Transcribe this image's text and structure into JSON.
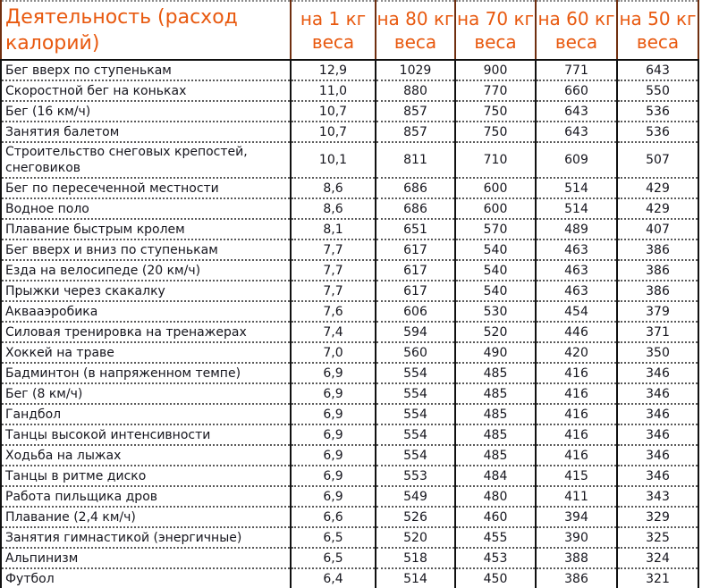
{
  "colors": {
    "header_text": "#e8590f",
    "header_grid": "#6f2f10",
    "body_text": "#15151d",
    "grid": "#111111",
    "row_divider": "#5a5a5a"
  },
  "chart_data": {
    "type": "table",
    "title": "Деятельность (расход калорий)",
    "columns": [
      "Деятельность (расход калорий)",
      "на 1 кг веса",
      "на 80 кг веса",
      "на 70 кг веса",
      "на 60 кг веса",
      "на 50 кг веса"
    ],
    "rows": [
      [
        "Бег вверх по ступенькам",
        "12,9",
        "1029",
        "900",
        "771",
        "643"
      ],
      [
        "Скоростной бег на коньках",
        "11,0",
        "880",
        "770",
        "660",
        "550"
      ],
      [
        "Бег (16 км/ч)",
        "10,7",
        "857",
        "750",
        "643",
        "536"
      ],
      [
        "Занятия балетом",
        "10,7",
        "857",
        "750",
        "643",
        "536"
      ],
      [
        "Строительство снеговых крепостей, снеговиков",
        "10,1",
        "811",
        "710",
        "609",
        "507"
      ],
      [
        "Бег по пересеченной местности",
        "8,6",
        "686",
        "600",
        "514",
        "429"
      ],
      [
        "Водное поло",
        "8,6",
        "686",
        "600",
        "514",
        "429"
      ],
      [
        "Плавание быстрым кролем",
        "8,1",
        "651",
        "570",
        "489",
        "407"
      ],
      [
        "Бег вверх и вниз по ступенькам",
        "7,7",
        "617",
        "540",
        "463",
        "386"
      ],
      [
        "Езда на велосипеде (20 км/ч)",
        "7,7",
        "617",
        "540",
        "463",
        "386"
      ],
      [
        "Прыжки через скакалку",
        "7,7",
        "617",
        "540",
        "463",
        "386"
      ],
      [
        "Аквааэробика",
        "7,6",
        "606",
        "530",
        "454",
        "379"
      ],
      [
        "Силовая тренировка на тренажерах",
        "7,4",
        "594",
        "520",
        "446",
        "371"
      ],
      [
        "Хоккей на траве",
        "7,0",
        "560",
        "490",
        "420",
        "350"
      ],
      [
        "Бадминтон (в напряженном темпе)",
        "6,9",
        "554",
        "485",
        "416",
        "346"
      ],
      [
        "Бег (8 км/ч)",
        "6,9",
        "554",
        "485",
        "416",
        "346"
      ],
      [
        "Гандбол",
        "6,9",
        "554",
        "485",
        "416",
        "346"
      ],
      [
        "Танцы высокой интенсивности",
        "6,9",
        "554",
        "485",
        "416",
        "346"
      ],
      [
        "Ходьба на лыжах",
        "6,9",
        "554",
        "485",
        "416",
        "346"
      ],
      [
        "Танцы в ритме диско",
        "6,9",
        "553",
        "484",
        "415",
        "346"
      ],
      [
        "Работа пильщика дров",
        "6,9",
        "549",
        "480",
        "411",
        "343"
      ],
      [
        "Плавание (2,4 км/ч)",
        "6,6",
        "526",
        "460",
        "394",
        "329"
      ],
      [
        "Занятия гимнастикой (энергичные)",
        "6,5",
        "520",
        "455",
        "390",
        "325"
      ],
      [
        "Альпинизм",
        "6,5",
        "518",
        "453",
        "388",
        "324"
      ],
      [
        "Футбол",
        "6,4",
        "514",
        "450",
        "386",
        "321"
      ]
    ]
  }
}
